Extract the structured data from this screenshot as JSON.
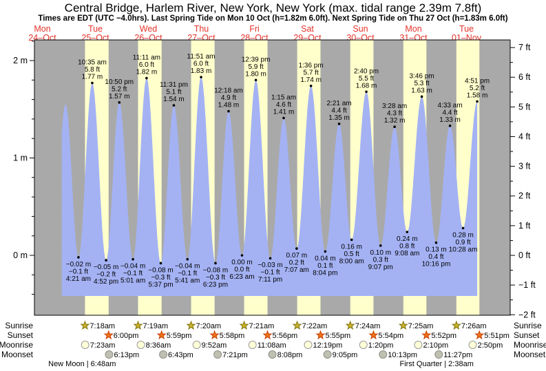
{
  "header": {
    "title": "Central Bridge, Harlem River, New York, New York (max. tidal range 2.39m 7.8ft)",
    "subtitle": "Times are EDT (UTC −4.0hrs). Last Spring Tide on Mon 10 Oct (h=1.82m 6.0ft). Next Spring Tide on Thu 27 Oct (h=1.83m 6.0ft)"
  },
  "days": [
    {
      "dow": "Mon",
      "date": "24–Oct"
    },
    {
      "dow": "Tue",
      "date": "25–Oct"
    },
    {
      "dow": "Wed",
      "date": "26–Oct"
    },
    {
      "dow": "Thu",
      "date": "27–Oct"
    },
    {
      "dow": "Fri",
      "date": "28–Oct"
    },
    {
      "dow": "Sat",
      "date": "29–Oct"
    },
    {
      "dow": "Sun",
      "date": "30–Oct"
    },
    {
      "dow": "Mon",
      "date": "31–Oct"
    },
    {
      "dow": "Tue",
      "date": "01–Nov"
    }
  ],
  "chart_data": {
    "type": "area",
    "title": "Central Bridge, Harlem River, New York, New York tide curve",
    "x_axis": {
      "unit": "days",
      "labels": [
        "Mon 24–Oct",
        "Tue 25–Oct",
        "Wed 26–Oct",
        "Thu 27–Oct",
        "Fri 28–Oct",
        "Sat 29–Oct",
        "Sun 30–Oct",
        "Mon 31–Oct",
        "Tue 01–Nov"
      ]
    },
    "y_axis_left": {
      "unit": "m",
      "major_ticks": [
        2,
        1,
        0
      ],
      "labels": [
        "2 m",
        "1 m",
        "0 m"
      ],
      "minor_step": 0.2,
      "range": [
        -0.6,
        2.2
      ]
    },
    "y_axis_right": {
      "unit": "ft",
      "major_ticks": [
        7,
        6,
        5,
        4,
        3,
        2,
        1,
        0,
        -1,
        -2
      ],
      "labels": [
        "7 ft",
        "6 ft",
        "5 ft",
        "4 ft",
        "3 ft",
        "2 ft",
        "1 ft",
        "0 ft",
        "−1 ft",
        "−2 ft"
      ],
      "minor_step": 0.5,
      "range": [
        -2,
        7
      ]
    },
    "tides": [
      {
        "kind": "low",
        "day": 0,
        "hour": 16.5,
        "h": -0.05,
        "virtual": true
      },
      {
        "kind": "high",
        "day": 0,
        "hour": 22.5,
        "h": 1.55,
        "unlabeled": true
      },
      {
        "kind": "low",
        "day": 1,
        "hour": 4.35,
        "h": -0.02,
        "m": "−0.02 m",
        "ft": "−0.1 ft",
        "time": "4:21 am"
      },
      {
        "kind": "high",
        "day": 1,
        "hour": 10.583,
        "h": 1.77,
        "m": "1.77 m",
        "ft": "5.8 ft",
        "time": "10:35 am"
      },
      {
        "kind": "low",
        "day": 1,
        "hour": 16.867,
        "h": -0.05,
        "m": "−0.05 m",
        "ft": "−0.2 ft",
        "time": "4:52 pm"
      },
      {
        "kind": "high",
        "day": 1,
        "hour": 22.833,
        "h": 1.57,
        "m": "1.57 m",
        "ft": "5.2 ft",
        "time": "10:50 pm"
      },
      {
        "kind": "low",
        "day": 2,
        "hour": 5.017,
        "h": -0.04,
        "m": "−0.04 m",
        "ft": "−0.1 ft",
        "time": "5:01 am"
      },
      {
        "kind": "high",
        "day": 2,
        "hour": 11.183,
        "h": 1.82,
        "m": "1.82 m",
        "ft": "6.0 ft",
        "time": "11:11 am"
      },
      {
        "kind": "low",
        "day": 2,
        "hour": 17.617,
        "h": -0.08,
        "m": "−0.08 m",
        "ft": "−0.3 ft",
        "time": "5:37 pm"
      },
      {
        "kind": "high",
        "day": 2,
        "hour": 23.517,
        "h": 1.54,
        "m": "1.54 m",
        "ft": "5.1 ft",
        "time": "11:31 pm"
      },
      {
        "kind": "low",
        "day": 3,
        "hour": 5.683,
        "h": -0.04,
        "m": "−0.04 m",
        "ft": "−0.1 ft",
        "time": "5:41 am"
      },
      {
        "kind": "high",
        "day": 3,
        "hour": 11.85,
        "h": 1.83,
        "m": "1.83 m",
        "ft": "6.0 ft",
        "time": "11:51 am"
      },
      {
        "kind": "low",
        "day": 3,
        "hour": 18.383,
        "h": -0.08,
        "m": "−0.08 m",
        "ft": "−0.3 ft",
        "time": "6:23 pm"
      },
      {
        "kind": "high",
        "day": 4,
        "hour": 0.3,
        "h": 1.48,
        "m": "1.48 m",
        "ft": "4.9 ft",
        "time": "12:18 am"
      },
      {
        "kind": "low",
        "day": 4,
        "hour": 6.383,
        "h": 0.0,
        "m": "0.00 m",
        "ft": "0.0 ft",
        "time": "6:23 am"
      },
      {
        "kind": "high",
        "day": 4,
        "hour": 12.65,
        "h": 1.8,
        "m": "1.80 m",
        "ft": "5.9 ft",
        "time": "12:39 pm"
      },
      {
        "kind": "low",
        "day": 4,
        "hour": 19.183,
        "h": -0.03,
        "m": "−0.03 m",
        "ft": "−0.1 ft",
        "time": "7:11 pm"
      },
      {
        "kind": "high",
        "day": 5,
        "hour": 1.25,
        "h": 1.41,
        "m": "1.41 m",
        "ft": "4.6 ft",
        "time": "1:15 am"
      },
      {
        "kind": "low",
        "day": 5,
        "hour": 7.117,
        "h": 0.07,
        "m": "0.07 m",
        "ft": "0.2 ft",
        "time": "7:07 am"
      },
      {
        "kind": "high",
        "day": 5,
        "hour": 13.6,
        "h": 1.74,
        "m": "1.74 m",
        "ft": "5.7 ft",
        "time": "1:36 pm"
      },
      {
        "kind": "low",
        "day": 5,
        "hour": 20.067,
        "h": 0.04,
        "m": "0.04 m",
        "ft": "0.1 ft",
        "time": "8:04 pm"
      },
      {
        "kind": "high",
        "day": 6,
        "hour": 2.35,
        "h": 1.35,
        "m": "1.35 m",
        "ft": "4.4 ft",
        "time": "2:21 am"
      },
      {
        "kind": "low",
        "day": 6,
        "hour": 8.0,
        "h": 0.16,
        "m": "0.16 m",
        "ft": "0.5 ft",
        "time": "8:00 am"
      },
      {
        "kind": "high",
        "day": 6,
        "hour": 14.667,
        "h": 1.68,
        "m": "1.68 m",
        "ft": "5.5 ft",
        "time": "2:40 pm"
      },
      {
        "kind": "low",
        "day": 6,
        "hour": 21.117,
        "h": 0.1,
        "m": "0.10 m",
        "ft": "0.3 ft",
        "time": "9:07 pm"
      },
      {
        "kind": "high",
        "day": 7,
        "hour": 3.467,
        "h": 1.32,
        "m": "1.32 m",
        "ft": "4.3 ft",
        "time": "3:28 am"
      },
      {
        "kind": "low",
        "day": 7,
        "hour": 9.133,
        "h": 0.24,
        "m": "0.24 m",
        "ft": "0.8 ft",
        "time": "9:08 am"
      },
      {
        "kind": "high",
        "day": 7,
        "hour": 15.767,
        "h": 1.63,
        "m": "1.63 m",
        "ft": "5.3 ft",
        "time": "3:46 pm"
      },
      {
        "kind": "low",
        "day": 7,
        "hour": 22.267,
        "h": 0.13,
        "m": "0.13 m",
        "ft": "0.4 ft",
        "time": "10:16 pm"
      },
      {
        "kind": "high",
        "day": 8,
        "hour": 4.55,
        "h": 1.33,
        "m": "1.33 m",
        "ft": "4.4 ft",
        "time": "4:33 am"
      },
      {
        "kind": "low",
        "day": 8,
        "hour": 10.467,
        "h": 0.28,
        "m": "0.28 m",
        "ft": "0.9 ft",
        "time": "10:28 am"
      },
      {
        "kind": "high",
        "day": 8,
        "hour": 16.85,
        "h": 1.58,
        "m": "1.58 m",
        "ft": "5.2 ft",
        "time": "4:51 pm"
      }
    ],
    "colors": {
      "night_band": "#a9a9a9",
      "daylight_band": "#ffffcc",
      "tide_fill": "#a4b2f4",
      "day_label": "#e5332b",
      "sunrise_star_fill": "#c9b227",
      "sunrise_star_stroke": "#7f730e",
      "sunset_star_fill": "#ec7418",
      "sunset_star_stroke": "#c83c00",
      "moonrise_fill": "#ffffd8",
      "moonrise_stroke": "#9a9a9a",
      "moonset_fill": "#bfbfb2",
      "moonset_stroke": "#8f8f85"
    }
  },
  "astro": {
    "row_labels": [
      "Sunrise",
      "Sunset",
      "Moonrise",
      "Moonset"
    ],
    "sunrise": [
      {
        "day": 1,
        "time": "7:18am"
      },
      {
        "day": 2,
        "time": "7:19am"
      },
      {
        "day": 3,
        "time": "7:20am"
      },
      {
        "day": 4,
        "time": "7:21am"
      },
      {
        "day": 5,
        "time": "7:22am"
      },
      {
        "day": 6,
        "time": "7:24am"
      },
      {
        "day": 7,
        "time": "7:25am"
      },
      {
        "day": 8,
        "time": "7:26am"
      }
    ],
    "sunset": [
      {
        "day": 1,
        "time": "6:00pm"
      },
      {
        "day": 2,
        "time": "5:59pm"
      },
      {
        "day": 3,
        "time": "5:58pm"
      },
      {
        "day": 4,
        "time": "5:56pm"
      },
      {
        "day": 5,
        "time": "5:55pm"
      },
      {
        "day": 6,
        "time": "5:54pm"
      },
      {
        "day": 7,
        "time": "5:52pm"
      },
      {
        "day": 8,
        "time": "5:51pm"
      }
    ],
    "moonrise": [
      {
        "day": 1,
        "time": "7:23am"
      },
      {
        "day": 2,
        "time": "8:36am"
      },
      {
        "day": 3,
        "time": "9:52am"
      },
      {
        "day": 4,
        "time": "11:08am"
      },
      {
        "day": 5,
        "time": "12:19pm"
      },
      {
        "day": 6,
        "time": "1:20pm"
      },
      {
        "day": 7,
        "time": "2:10pm"
      },
      {
        "day": 8,
        "time": "2:50pm"
      }
    ],
    "moonset": [
      {
        "day": 1,
        "time": "6:13pm"
      },
      {
        "day": 2,
        "time": "6:43pm"
      },
      {
        "day": 3,
        "time": "7:21pm"
      },
      {
        "day": 4,
        "time": "8:08pm"
      },
      {
        "day": 5,
        "time": "9:05pm"
      },
      {
        "day": 6,
        "time": "10:13pm"
      },
      {
        "day": 7,
        "time": "11:27pm"
      }
    ],
    "moon_phases": [
      {
        "label": "New Moon | 6:48am",
        "day": 1,
        "hour": 6.0
      },
      {
        "label": "First Quarter | 2:38am",
        "day": 7,
        "hour": 22.5
      }
    ]
  }
}
